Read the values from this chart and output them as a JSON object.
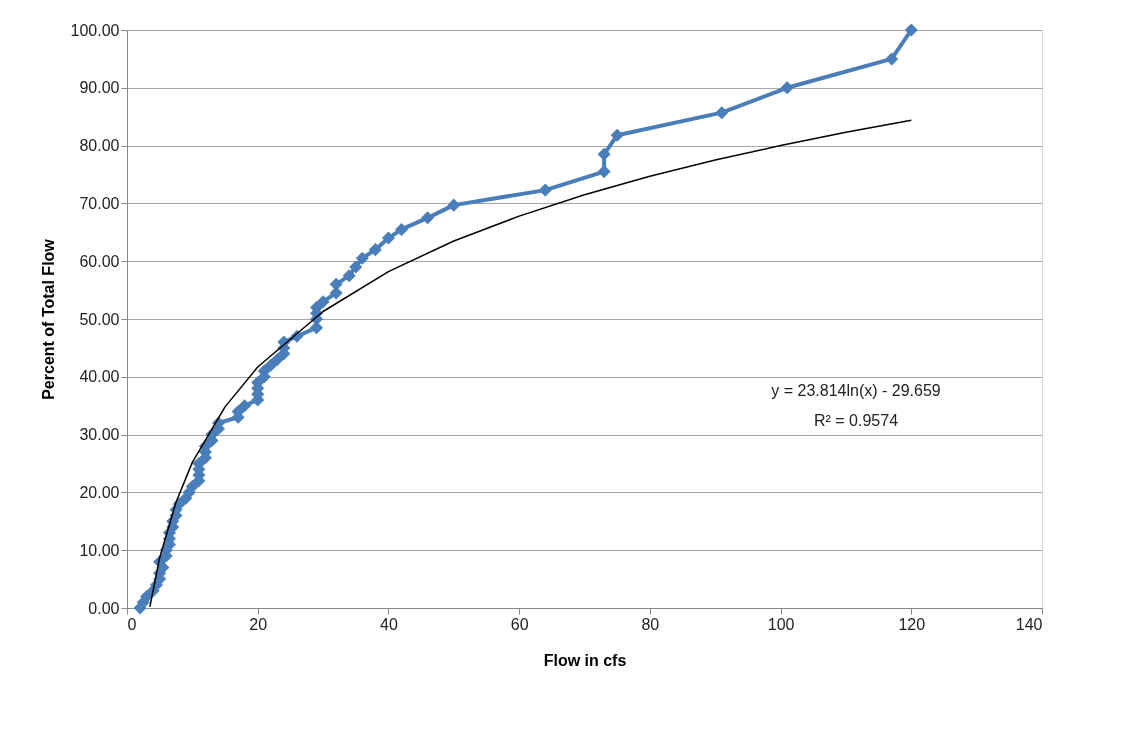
{
  "chart_data": {
    "type": "line",
    "xlabel": "Flow in cfs",
    "ylabel": "Percent of Total Flow",
    "xlim": [
      0,
      140
    ],
    "xticks": [
      0,
      20,
      40,
      60,
      80,
      100,
      120,
      140
    ],
    "ylim": [
      0,
      100
    ],
    "yticks": [
      {
        "value": 0,
        "label": "0.00"
      },
      {
        "value": 10,
        "label": "10.00"
      },
      {
        "value": 20,
        "label": "20.00"
      },
      {
        "value": 30,
        "label": "30.00"
      },
      {
        "value": 40,
        "label": "40.00"
      },
      {
        "value": 50,
        "label": "50.00"
      },
      {
        "value": 60,
        "label": "60.00"
      },
      {
        "value": 70,
        "label": "70.00"
      },
      {
        "value": 80,
        "label": "80.00"
      },
      {
        "value": 90,
        "label": "90.00"
      },
      {
        "value": 100,
        "label": "100.00"
      }
    ],
    "grid": "y",
    "series": [
      {
        "color": "#4a7ebb",
        "marker": "diamond",
        "x": [
          2,
          2.5,
          3,
          4,
          4.5,
          5,
          5,
          5.5,
          5,
          6,
          6,
          6.5,
          6.5,
          6.5,
          7,
          7,
          7.5,
          7.5,
          8,
          9,
          9.5,
          10,
          11,
          11,
          11,
          11,
          12,
          12,
          12,
          13,
          13,
          14,
          14,
          17,
          17,
          18,
          20,
          20,
          20,
          20,
          21,
          21,
          22,
          23,
          24,
          24,
          24,
          26,
          29,
          29,
          29,
          29,
          30,
          32,
          32,
          34,
          35,
          36,
          38,
          40,
          42,
          46,
          50,
          64,
          73,
          73,
          75,
          91,
          101,
          117,
          120
        ],
        "values": [
          0,
          1,
          2,
          3,
          4,
          5,
          6,
          7,
          8,
          9,
          10,
          11,
          12,
          13,
          14,
          15,
          16,
          17,
          18,
          19,
          20,
          21,
          22,
          23,
          24,
          25,
          26,
          27,
          28,
          29,
          30,
          31,
          32,
          33,
          34,
          35,
          36,
          37,
          38,
          39,
          40,
          41,
          42,
          43,
          44,
          45,
          46,
          47,
          48.5,
          50,
          51,
          52,
          53,
          54.5,
          56,
          57.5,
          59,
          60.5,
          62,
          64,
          65.5,
          67.5,
          69.7,
          72.3,
          75.5,
          78.5,
          81.8,
          85.7,
          90,
          95,
          100
        ]
      },
      {
        "type": "line",
        "color": "#000000",
        "marker": "none",
        "x": [
          3.5,
          5,
          7.5,
          10,
          15,
          20,
          30,
          40,
          50,
          60,
          70,
          80,
          90,
          100,
          110,
          120
        ],
        "values": [
          0.2,
          8.7,
          18.3,
          25.2,
          34.8,
          41.7,
          51.3,
          58.2,
          63.5,
          67.8,
          71.5,
          74.7,
          77.5,
          80.0,
          82.3,
          84.4
        ]
      }
    ],
    "annotations": [
      "y = 23.814ln(x) - 29.659",
      "R² = 0.9574"
    ]
  }
}
